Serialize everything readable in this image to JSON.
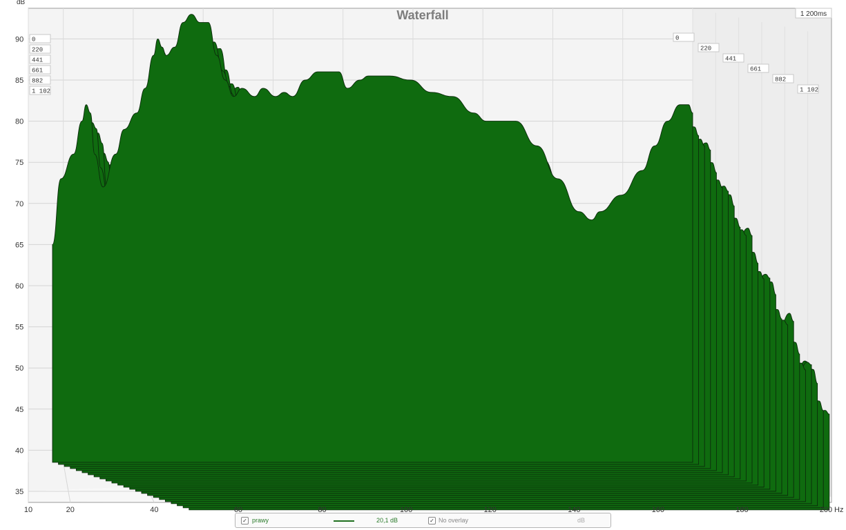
{
  "chart_data": {
    "type": "area",
    "title": "Waterfall",
    "ylabel": "dB",
    "xlabel": "Hz",
    "x_ticks": [
      "10",
      "20",
      "40",
      "60",
      "80",
      "100",
      "120",
      "140",
      "160",
      "180",
      "200"
    ],
    "x_tick_values": [
      10,
      20,
      40,
      60,
      80,
      100,
      120,
      140,
      160,
      180,
      200
    ],
    "y_ticks": [
      "35",
      "40",
      "45",
      "50",
      "55",
      "60",
      "65",
      "70",
      "75",
      "80",
      "85",
      "90"
    ],
    "y_tick_values": [
      35,
      40,
      45,
      50,
      55,
      60,
      65,
      70,
      75,
      80,
      85,
      90
    ],
    "ylim": [
      34,
      93
    ],
    "xlim": [
      10,
      200
    ],
    "time_labels_left": [
      "0",
      "220",
      "441",
      "661",
      "882",
      "1 102"
    ],
    "time_labels_right": [
      "0",
      "220",
      "441",
      "661",
      "882",
      "1 102"
    ],
    "time_axis_max_label": "1 200ms",
    "surface_color": "#0f6b0f",
    "slice_line_color": "#0b2a0b",
    "front_slice": {
      "name": "0 ms",
      "x": [
        15,
        17,
        20,
        22,
        23,
        24,
        25,
        27,
        30,
        32,
        35,
        37,
        39,
        40,
        41,
        42,
        44,
        46,
        48,
        50,
        52,
        54,
        56,
        58,
        60,
        63,
        65,
        68,
        70,
        72,
        75,
        78,
        80,
        83,
        85,
        88,
        90,
        95,
        100,
        105,
        110,
        115,
        118,
        120,
        125,
        130,
        135,
        140,
        143,
        145,
        150,
        155,
        158,
        161,
        164,
        166,
        167
      ],
      "y": [
        65,
        73,
        76,
        80,
        82,
        81,
        76,
        72,
        76,
        79,
        81,
        84,
        88,
        90,
        89,
        88,
        89,
        92,
        93,
        92,
        92,
        88,
        85,
        83,
        84,
        83,
        84,
        83,
        83.5,
        83,
        85,
        86,
        86,
        86,
        84,
        85,
        85.5,
        85.5,
        85,
        83.5,
        83,
        81,
        80,
        80,
        80,
        77,
        73,
        69,
        68,
        69,
        71,
        74,
        77,
        80,
        82,
        82,
        81
      ]
    },
    "decay_rate_db_per_slice": 1.4,
    "slice_count": 24,
    "readout": {
      "series_name": "prawy",
      "value": "20,1 dB",
      "overlay": "No overlay",
      "unit": "dB"
    }
  }
}
